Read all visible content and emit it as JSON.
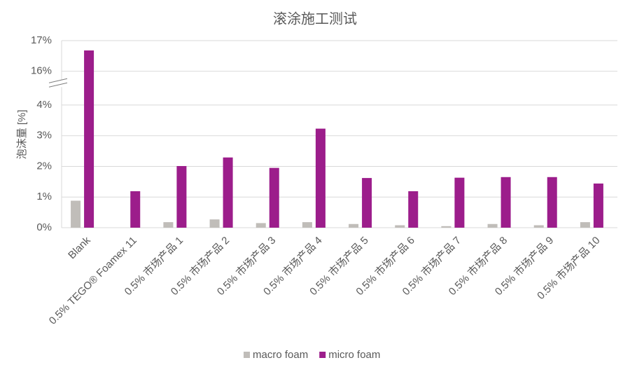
{
  "chart_data": {
    "type": "bar",
    "title": "滚涂施工测试",
    "y_label": "泡沫量 [%]",
    "categories": [
      "Blank",
      "0.5% TEGO® Foamex 11",
      "0.5% 市场产品 1",
      "0.5% 市场产品 2",
      "0.5% 市场产品 3",
      "0.5% 市场产品 4",
      "0.5% 市场产品 5",
      "0.5% 市场产品 6",
      "0.5% 市场产品 7",
      "0.5% 市场产品 8",
      "0.5% 市场产品 9",
      "0.5% 市场产品 10"
    ],
    "series": [
      {
        "name": "macro foam",
        "color": "#c0bdb9",
        "values": [
          0.88,
          0,
          0.18,
          0.27,
          0.15,
          0.18,
          0.12,
          0.08,
          0.05,
          0.12,
          0.08,
          0.18
        ]
      },
      {
        "name": "micro foam",
        "color": "#9c1d8b",
        "values": [
          16.68,
          1.19,
          2.01,
          2.29,
          1.95,
          3.23,
          1.62,
          1.19,
          1.63,
          1.65,
          1.65,
          1.44
        ]
      }
    ],
    "ylim": [
      0,
      17
    ],
    "ybreak": [
      4.7,
      15.6
    ],
    "yticks": [
      {
        "value": 0,
        "label": "0%"
      },
      {
        "value": 1,
        "label": "1%"
      },
      {
        "value": 2,
        "label": "2%"
      },
      {
        "value": 3,
        "label": "3%"
      },
      {
        "value": 4,
        "label": "4%"
      },
      {
        "value": 16,
        "label": "16%"
      },
      {
        "value": 17,
        "label": "17%"
      }
    ],
    "grid": true,
    "legend": "bottom"
  }
}
